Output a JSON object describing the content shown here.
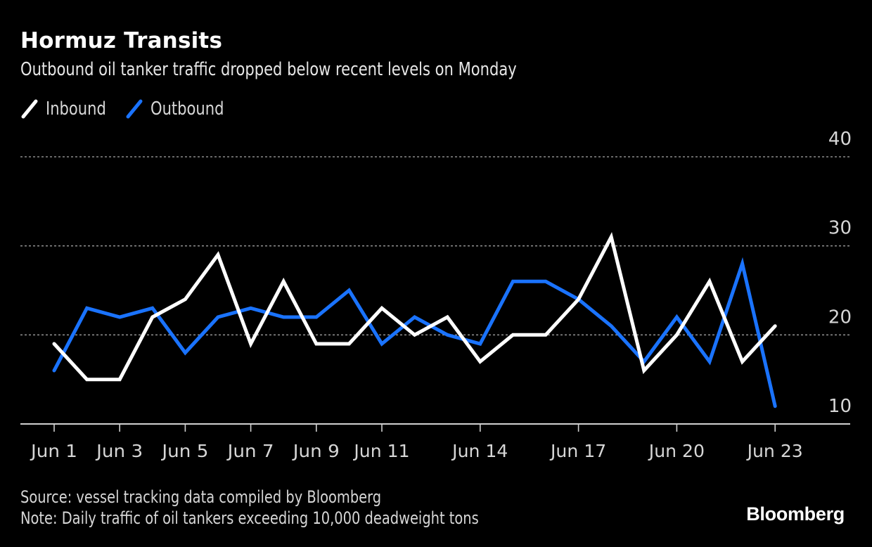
{
  "header": {
    "title": "Hormuz Transits",
    "subtitle": "Outbound oil tanker traffic dropped below recent levels on Monday"
  },
  "legend": [
    {
      "label": "Inbound",
      "color": "#ffffff"
    },
    {
      "label": "Outbound",
      "color": "#1a73ff"
    }
  ],
  "footer": {
    "source": "Source: vessel tracking data compiled by Bloomberg",
    "note": "Note: Daily traffic of oil tankers exceeding 10,000 deadweight tons",
    "brand": "Bloomberg"
  },
  "chart_data": {
    "type": "line",
    "title": "Hormuz Transits",
    "subtitle": "Outbound oil tanker traffic dropped below recent levels on Monday",
    "xlabel": "",
    "ylabel": "",
    "x": [
      "Jun 1",
      "Jun 2",
      "Jun 3",
      "Jun 4",
      "Jun 5",
      "Jun 6",
      "Jun 7",
      "Jun 8",
      "Jun 9",
      "Jun 10",
      "Jun 11",
      "Jun 12",
      "Jun 13",
      "Jun 14",
      "Jun 15",
      "Jun 16",
      "Jun 17",
      "Jun 18",
      "Jun 19",
      "Jun 20",
      "Jun 21",
      "Jun 22",
      "Jun 23"
    ],
    "x_tick_labels": [
      "Jun 1",
      "Jun 3",
      "Jun 5",
      "Jun 7",
      "Jun 9",
      "Jun 11",
      "Jun 14",
      "Jun 17",
      "Jun 20",
      "Jun 23"
    ],
    "x_tick_days": [
      1,
      3,
      5,
      7,
      9,
      11,
      14,
      17,
      20,
      23
    ],
    "series": [
      {
        "name": "Inbound",
        "color": "#ffffff",
        "values": [
          19,
          15,
          15,
          22,
          24,
          29,
          19,
          26,
          19,
          19,
          23,
          20,
          22,
          17,
          20,
          20,
          24,
          31,
          16,
          20,
          26,
          17,
          21
        ]
      },
      {
        "name": "Outbound",
        "color": "#1a73ff",
        "values": [
          16,
          23,
          22,
          23,
          18,
          22,
          23,
          22,
          22,
          25,
          19,
          22,
          20,
          19,
          26,
          26,
          24,
          21,
          17,
          22,
          17,
          28,
          12
        ]
      }
    ],
    "ylim": [
      10,
      40
    ],
    "y_ticks": [
      10,
      20,
      30,
      40
    ],
    "grid": true,
    "y_axis_position": "right",
    "legend_position": "top-left"
  }
}
